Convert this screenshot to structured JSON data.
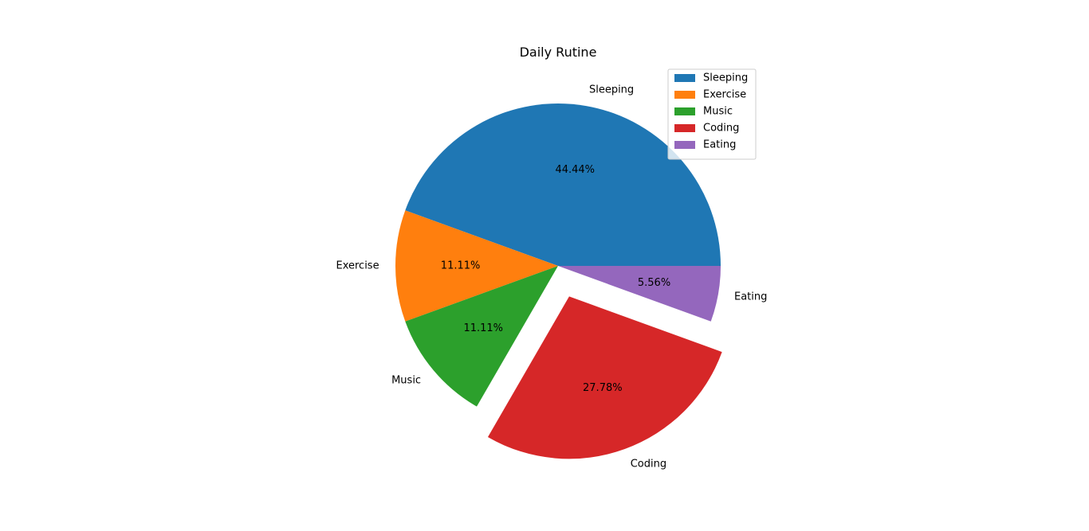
{
  "chart_data": {
    "type": "pie",
    "title": "Daily Rutine",
    "categories": [
      "Sleeping",
      "Exercise",
      "Music",
      "Coding",
      "Eating"
    ],
    "values": [
      8,
      2,
      2,
      5,
      1
    ],
    "percent_labels": [
      "44.44%",
      "11.11%",
      "11.11%",
      "27.78%",
      "5.56%"
    ],
    "colors": [
      "#1f77b4",
      "#ff7f0e",
      "#2ca02c",
      "#d62728",
      "#9467bd"
    ],
    "exploded": [
      false,
      false,
      false,
      true,
      false
    ],
    "start_angle_deg": 0,
    "direction": "counterclockwise",
    "legend": {
      "placement": "upper-right",
      "entries": [
        "Sleeping",
        "Exercise",
        "Music",
        "Coding",
        "Eating"
      ]
    }
  }
}
